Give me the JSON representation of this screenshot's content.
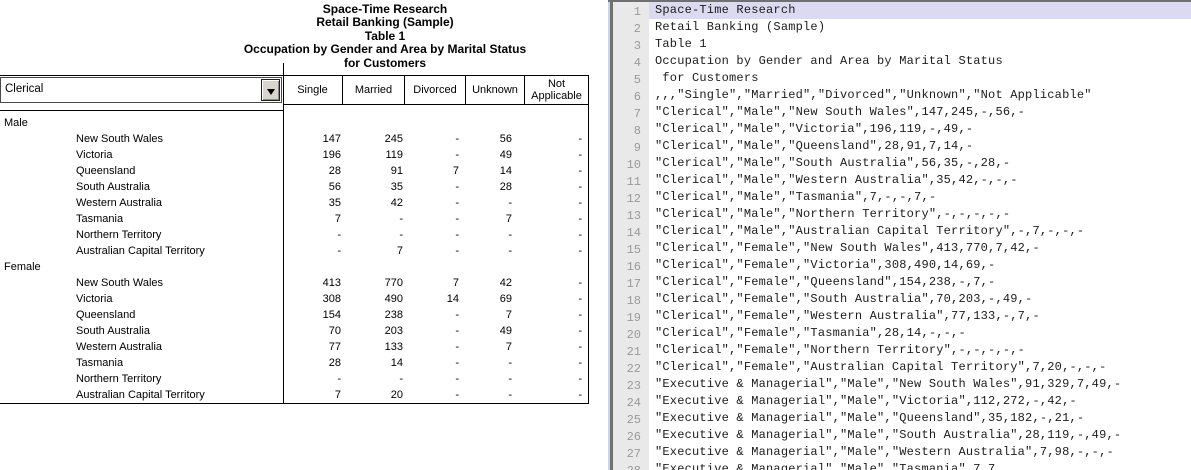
{
  "table_view": {
    "titles": [
      "Space-Time Research",
      "Retail Banking (Sample)",
      "Table 1",
      "Occupation by Gender and Area by Marital Status",
      "for Customers"
    ],
    "filter_dropdown": {
      "value": "Clerical"
    },
    "column_headers": [
      "Single",
      "Married",
      "Divorced",
      "Unknown",
      "Not Applicable"
    ],
    "row_groups": [
      {
        "label": "Male",
        "rows": [
          {
            "label": "New South Wales",
            "values": [
              "147",
              "245",
              "-",
              "56",
              "-"
            ]
          },
          {
            "label": "Victoria",
            "values": [
              "196",
              "119",
              "-",
              "49",
              "-"
            ]
          },
          {
            "label": "Queensland",
            "values": [
              "28",
              "91",
              "7",
              "14",
              "-"
            ]
          },
          {
            "label": "South Australia",
            "values": [
              "56",
              "35",
              "-",
              "28",
              "-"
            ]
          },
          {
            "label": "Western Australia",
            "values": [
              "35",
              "42",
              "-",
              "-",
              "-"
            ]
          },
          {
            "label": "Tasmania",
            "values": [
              "7",
              "-",
              "-",
              "7",
              "-"
            ]
          },
          {
            "label": "Northern Territory",
            "values": [
              "-",
              "-",
              "-",
              "-",
              "-"
            ]
          },
          {
            "label": "Australian Capital Territory",
            "values": [
              "-",
              "7",
              "-",
              "-",
              "-"
            ]
          }
        ]
      },
      {
        "label": "Female",
        "rows": [
          {
            "label": "New South Wales",
            "values": [
              "413",
              "770",
              "7",
              "42",
              "-"
            ]
          },
          {
            "label": "Victoria",
            "values": [
              "308",
              "490",
              "14",
              "69",
              "-"
            ]
          },
          {
            "label": "Queensland",
            "values": [
              "154",
              "238",
              "-",
              "7",
              "-"
            ]
          },
          {
            "label": "South Australia",
            "values": [
              "70",
              "203",
              "-",
              "49",
              "-"
            ]
          },
          {
            "label": "Western Australia",
            "values": [
              "77",
              "133",
              "-",
              "7",
              "-"
            ]
          },
          {
            "label": "Tasmania",
            "values": [
              "28",
              "14",
              "-",
              "-",
              "-"
            ]
          },
          {
            "label": "Northern Territory",
            "values": [
              "-",
              "-",
              "-",
              "-",
              "-"
            ]
          },
          {
            "label": "Australian Capital Territory",
            "values": [
              "7",
              "20",
              "-",
              "-",
              "-"
            ]
          }
        ]
      }
    ]
  },
  "csv_view": {
    "selected_line": 1,
    "lines": [
      "Space-Time Research",
      "Retail Banking (Sample)",
      "Table 1",
      "Occupation by Gender and Area by Marital Status",
      " for Customers",
      ",,,\"Single\",\"Married\",\"Divorced\",\"Unknown\",\"Not Applicable\"",
      "\"Clerical\",\"Male\",\"New South Wales\",147,245,-,56,-",
      "\"Clerical\",\"Male\",\"Victoria\",196,119,-,49,-",
      "\"Clerical\",\"Male\",\"Queensland\",28,91,7,14,-",
      "\"Clerical\",\"Male\",\"South Australia\",56,35,-,28,-",
      "\"Clerical\",\"Male\",\"Western Australia\",35,42,-,-,-",
      "\"Clerical\",\"Male\",\"Tasmania\",7,-,-,7,-",
      "\"Clerical\",\"Male\",\"Northern Territory\",-,-,-,-,-",
      "\"Clerical\",\"Male\",\"Australian Capital Territory\",-,7,-,-,-",
      "\"Clerical\",\"Female\",\"New South Wales\",413,770,7,42,-",
      "\"Clerical\",\"Female\",\"Victoria\",308,490,14,69,-",
      "\"Clerical\",\"Female\",\"Queensland\",154,238,-,7,-",
      "\"Clerical\",\"Female\",\"South Australia\",70,203,-,49,-",
      "\"Clerical\",\"Female\",\"Western Australia\",77,133,-,7,-",
      "\"Clerical\",\"Female\",\"Tasmania\",28,14,-,-,-",
      "\"Clerical\",\"Female\",\"Northern Territory\",-,-,-,-,-",
      "\"Clerical\",\"Female\",\"Australian Capital Territory\",7,20,-,-,-",
      "\"Executive & Managerial\",\"Male\",\"New South Wales\",91,329,7,49,-",
      "\"Executive & Managerial\",\"Male\",\"Victoria\",112,272,-,42,-",
      "\"Executive & Managerial\",\"Male\",\"Queensland\",35,182,-,21,-",
      "\"Executive & Managerial\",\"Male\",\"South Australia\",28,119,-,49,-",
      "\"Executive & Managerial\",\"Male\",\"Western Australia\",7,98,-,-,-",
      "\"Executive & Managerial\",\"Male\",\"Tasmania\",7,7"
    ]
  },
  "colors": {
    "selection": "#dadaf0",
    "gutter": "#e9e9e9",
    "edge_dark": "#707070",
    "edge_light": "#ccd3e6",
    "line_number": "#9a9a9a",
    "table_line": "#000000"
  }
}
